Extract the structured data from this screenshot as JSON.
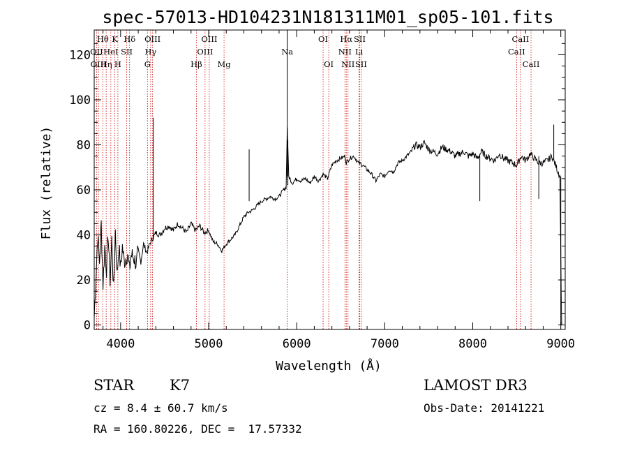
{
  "chart_data": {
    "type": "line",
    "title": "spec-57013-HD104231N181311M01_sp05-101.fits",
    "xlabel": "Wavelength (Å)",
    "ylabel": "Flux (relative)",
    "xlim": [
      3700,
      9050
    ],
    "ylim": [
      -2,
      131
    ],
    "xticks": [
      4000,
      5000,
      6000,
      7000,
      8000,
      9000
    ],
    "yticks": [
      0,
      20,
      40,
      60,
      80,
      100,
      120
    ],
    "series": [
      {
        "name": "flux",
        "x": [
          3700,
          3720,
          3740,
          3760,
          3780,
          3800,
          3820,
          3840,
          3860,
          3880,
          3900,
          3920,
          3940,
          3960,
          3980,
          4000,
          4020,
          4040,
          4060,
          4080,
          4100,
          4120,
          4150,
          4180,
          4200,
          4230,
          4260,
          4300,
          4330,
          4360,
          4400,
          4450,
          4500,
          4550,
          4600,
          4650,
          4700,
          4750,
          4800,
          4850,
          4900,
          4950,
          5000,
          5050,
          5100,
          5150,
          5200,
          5250,
          5300,
          5350,
          5400,
          5450,
          5500,
          5550,
          5600,
          5650,
          5700,
          5750,
          5800,
          5850,
          5880,
          5893,
          5910,
          5950,
          6000,
          6050,
          6100,
          6150,
          6200,
          6250,
          6300,
          6350,
          6400,
          6450,
          6500,
          6550,
          6563,
          6600,
          6650,
          6700,
          6750,
          6800,
          6850,
          6900,
          6950,
          7000,
          7050,
          7100,
          7150,
          7200,
          7250,
          7300,
          7350,
          7400,
          7450,
          7500,
          7550,
          7600,
          7650,
          7700,
          7750,
          7800,
          7850,
          7900,
          7950,
          8000,
          8050,
          8100,
          8150,
          8200,
          8250,
          8300,
          8350,
          8400,
          8450,
          8500,
          8550,
          8600,
          8650,
          8700,
          8750,
          8800,
          8850,
          8900,
          8950,
          8990,
          9000,
          9010
        ],
        "y": [
          3,
          22,
          40,
          28,
          45,
          18,
          35,
          25,
          40,
          20,
          38,
          15,
          42,
          22,
          35,
          25,
          35,
          28,
          30,
          32,
          24,
          31,
          30,
          27,
          33,
          28,
          36,
          32,
          36,
          38,
          41,
          40,
          43,
          44,
          42,
          45,
          43,
          41,
          45,
          42,
          44,
          41,
          42,
          37,
          36,
          33,
          36,
          38,
          40,
          44,
          48,
          50,
          51,
          53,
          55,
          56,
          57,
          56,
          57,
          60,
          61,
          88,
          66,
          63,
          65,
          64,
          65,
          63,
          66,
          64,
          67,
          65,
          71,
          73,
          74,
          75,
          72,
          74,
          75,
          72,
          71,
          69,
          67,
          64,
          67,
          66,
          69,
          68,
          72,
          73,
          75,
          77,
          80,
          79,
          81,
          78,
          77,
          76,
          79,
          78,
          77,
          75,
          76,
          77,
          75,
          76,
          74,
          77,
          75,
          74,
          73,
          76,
          74,
          73,
          72,
          71,
          75,
          73,
          76,
          74,
          72,
          72,
          73,
          75,
          70,
          66,
          30,
          0
        ]
      }
    ],
    "lines": [
      {
        "name": "Hθ",
        "wl": 3798,
        "row": 1
      },
      {
        "name": "OII",
        "wl": 3727,
        "row": 2
      },
      {
        "name": "OIII",
        "wl": 3749,
        "row": 3
      },
      {
        "name": "Hη",
        "wl": 3836,
        "row": 3
      },
      {
        "name": "K",
        "wl": 3934,
        "row": 1
      },
      {
        "name": "HeI",
        "wl": 3889,
        "row": 2
      },
      {
        "name": "SII",
        "wl": 4069,
        "row": 2
      },
      {
        "name": "H",
        "wl": 3969,
        "row": 3
      },
      {
        "name": "Hδ",
        "wl": 4102,
        "row": 1
      },
      {
        "name": "OIII",
        "wl": 4363,
        "row": 1
      },
      {
        "name": "Hγ",
        "wl": 4341,
        "row": 2
      },
      {
        "name": "G",
        "wl": 4305,
        "row": 3
      },
      {
        "name": "OIII",
        "wl": 5007,
        "row": 1
      },
      {
        "name": "OIII",
        "wl": 4959,
        "row": 2
      },
      {
        "name": "Hβ",
        "wl": 4861,
        "row": 3
      },
      {
        "name": "Mg",
        "wl": 5175,
        "row": 3
      },
      {
        "name": "Na",
        "wl": 5893,
        "row": 2
      },
      {
        "name": "OI",
        "wl": 6300,
        "row": 1
      },
      {
        "name": "OI",
        "wl": 6364,
        "row": 3
      },
      {
        "name": "Hα",
        "wl": 6563,
        "row": 1
      },
      {
        "name": "SII",
        "wl": 6716,
        "row": 1
      },
      {
        "name": "NII",
        "wl": 6548,
        "row": 2
      },
      {
        "name": "Li",
        "wl": 6708,
        "row": 2
      },
      {
        "name": "NII",
        "wl": 6583,
        "row": 3
      },
      {
        "name": "SII",
        "wl": 6731,
        "row": 3
      },
      {
        "name": "CaII",
        "wl": 8542,
        "row": 1
      },
      {
        "name": "CaII",
        "wl": 8498,
        "row": 2
      },
      {
        "name": "CaII",
        "wl": 8662,
        "row": 3
      }
    ]
  },
  "info": {
    "object_class": "STAR",
    "subclass": "K7",
    "survey": "LAMOST DR3",
    "cz": "cz = 8.4 ± 60.7 km/s",
    "obs_date": "Obs-Date: 20141221",
    "coords": "RA = 160.80226, DEC =  17.57332"
  },
  "colors": {
    "line_marker": "#cc0000",
    "spectrum": "#000000"
  }
}
